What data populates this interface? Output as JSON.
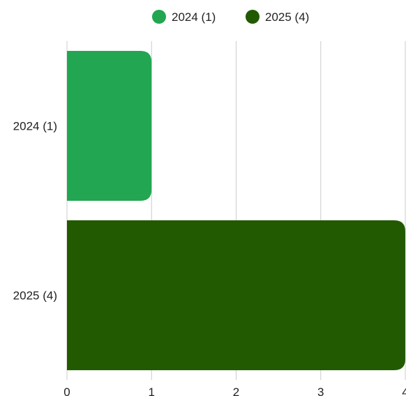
{
  "chart_data": {
    "type": "bar",
    "orientation": "horizontal",
    "categories": [
      "2024 (1)",
      "2025 (4)"
    ],
    "series": [
      {
        "name": "2024 (1)",
        "color": "#22a651",
        "values": [
          1,
          null
        ]
      },
      {
        "name": "2025 (4)",
        "color": "#215a00",
        "values": [
          null,
          4
        ]
      }
    ],
    "xlim": [
      0,
      4
    ],
    "x_ticks": [
      "0",
      "1",
      "2",
      "3",
      "4"
    ],
    "grid": true,
    "legend": "top-center",
    "title": "",
    "xlabel": "",
    "ylabel": ""
  }
}
